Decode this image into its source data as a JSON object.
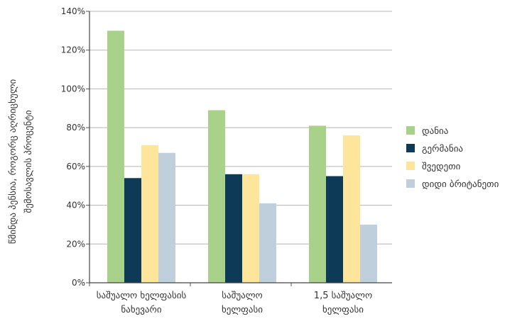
{
  "chart_data": {
    "type": "bar",
    "categories": [
      [
        "საშუალო ხელფასის",
        "ნახევარი"
      ],
      [
        "საშუალო",
        "ხელფასი"
      ],
      [
        "1,5 საშუალო",
        "ხელფასი"
      ]
    ],
    "series": [
      {
        "name": "დანია",
        "color": "#a8d28a",
        "values": [
          130,
          89,
          81
        ]
      },
      {
        "name": "გერმანია",
        "color": "#0c3a57",
        "values": [
          54,
          56,
          55
        ]
      },
      {
        "name": "შვედეთი",
        "color": "#fde59c",
        "values": [
          71,
          56,
          76
        ]
      },
      {
        "name": "დიდი ბრიტანეთი",
        "color": "#bfd0dc",
        "values": [
          67,
          41,
          30
        ]
      }
    ],
    "yticks": [
      "0%",
      "20%",
      "40%",
      "60%",
      "80%",
      "100%",
      "120%",
      "140%"
    ],
    "ylim": [
      0,
      140
    ],
    "ylabel": [
      "წმინდა პენსია, როგორც აღრიცხული",
      "შემოსავლის პროცენტი"
    ],
    "grid": true,
    "legend_position": "right"
  }
}
